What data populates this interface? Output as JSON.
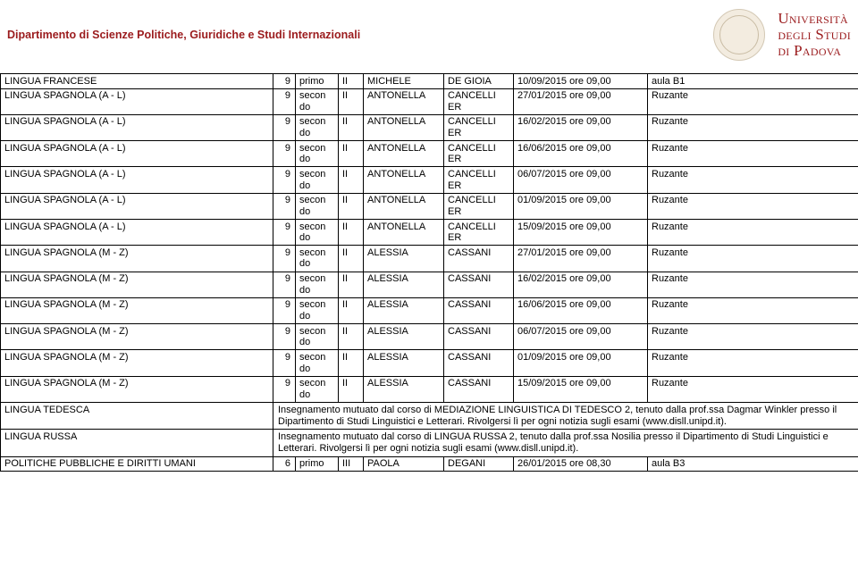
{
  "header": {
    "dept": "Dipartimento di Scienze Politiche, Giuridiche e Studi Internazionali",
    "univ_line1": "Università",
    "univ_line2": "degli Studi",
    "univ_line3": "di Padova"
  },
  "colors": {
    "brand": "#9b1b1d",
    "border": "#000000",
    "bg": "#ffffff"
  },
  "rows": [
    {
      "course": "LINGUA FRANCESE",
      "credits": "9",
      "level": "primo",
      "sem": "II",
      "first": "MICHELE",
      "last": "DE GIOIA",
      "date": "10/09/2015 ore 09,00",
      "room": "aula B1"
    },
    {
      "course": "LINGUA SPAGNOLA (A - L)",
      "credits": "9",
      "level": "secon do",
      "sem": "II",
      "first": "ANTONELLA",
      "last": "CANCELLI ER",
      "date": "27/01/2015 ore 09,00",
      "room": "Ruzante"
    },
    {
      "course": "LINGUA SPAGNOLA (A - L)",
      "credits": "9",
      "level": "secon do",
      "sem": "II",
      "first": "ANTONELLA",
      "last": "CANCELLI ER",
      "date": "16/02/2015 ore 09,00",
      "room": "Ruzante"
    },
    {
      "course": "LINGUA SPAGNOLA (A - L)",
      "credits": "9",
      "level": "secon do",
      "sem": "II",
      "first": "ANTONELLA",
      "last": "CANCELLI ER",
      "date": "16/06/2015 ore 09,00",
      "room": "Ruzante"
    },
    {
      "course": "LINGUA SPAGNOLA (A - L)",
      "credits": "9",
      "level": "secon do",
      "sem": "II",
      "first": "ANTONELLA",
      "last": "CANCELLI ER",
      "date": "06/07/2015 ore 09,00",
      "room": "Ruzante"
    },
    {
      "course": "LINGUA SPAGNOLA (A - L)",
      "credits": "9",
      "level": "secon do",
      "sem": "II",
      "first": "ANTONELLA",
      "last": "CANCELLI ER",
      "date": "01/09/2015 ore 09,00",
      "room": "Ruzante"
    },
    {
      "course": "LINGUA SPAGNOLA (A - L)",
      "credits": "9",
      "level": "secon do",
      "sem": "II",
      "first": "ANTONELLA",
      "last": "CANCELLI ER",
      "date": "15/09/2015 ore 09,00",
      "room": "Ruzante"
    },
    {
      "course": "LINGUA SPAGNOLA (M - Z)",
      "credits": "9",
      "level": "secon do",
      "sem": "II",
      "first": "ALESSIA",
      "last": "CASSANI",
      "date": "27/01/2015 ore 09,00",
      "room": "Ruzante"
    },
    {
      "course": "LINGUA SPAGNOLA (M - Z)",
      "credits": "9",
      "level": "secon do",
      "sem": "II",
      "first": "ALESSIA",
      "last": "CASSANI",
      "date": "16/02/2015 ore 09,00",
      "room": "Ruzante"
    },
    {
      "course": "LINGUA SPAGNOLA (M - Z)",
      "credits": "9",
      "level": "secon do",
      "sem": "II",
      "first": "ALESSIA",
      "last": "CASSANI",
      "date": "16/06/2015 ore 09,00",
      "room": "Ruzante"
    },
    {
      "course": "LINGUA SPAGNOLA (M - Z)",
      "credits": "9",
      "level": "secon do",
      "sem": "II",
      "first": "ALESSIA",
      "last": "CASSANI",
      "date": "06/07/2015 ore 09,00",
      "room": "Ruzante"
    },
    {
      "course": "LINGUA SPAGNOLA (M - Z)",
      "credits": "9",
      "level": "secon do",
      "sem": "II",
      "first": "ALESSIA",
      "last": "CASSANI",
      "date": "01/09/2015 ore 09,00",
      "room": "Ruzante"
    },
    {
      "course": "LINGUA SPAGNOLA (M - Z)",
      "credits": "9",
      "level": "secon do",
      "sem": "II",
      "first": "ALESSIA",
      "last": "CASSANI",
      "date": "15/09/2015 ore 09,00",
      "room": "Ruzante"
    }
  ],
  "notes": [
    {
      "course": "LINGUA TEDESCA",
      "text": "Insegnamento mutuato dal corso di MEDIAZIONE LINGUISTICA DI TEDESCO 2, tenuto dalla prof.ssa Dagmar Winkler presso il Dipartimento di Studi Linguistici e Letterari. Rivolgersi lì per ogni notizia sugli esami (www.disll.unipd.it)."
    },
    {
      "course": "LINGUA RUSSA",
      "text": "Insegnamento mutuato dal corso di LINGUA RUSSA 2, tenuto dalla prof.ssa Nosilia presso il Dipartimento di Studi Linguistici e Letterari. Rivolgersi lì per ogni notizia sugli esami (www.disll.unipd.it)."
    }
  ],
  "last_row": {
    "course": "POLITICHE PUBBLICHE E DIRITTI UMANI",
    "credits": "6",
    "level": "primo",
    "sem": "III",
    "first": "PAOLA",
    "last": "DEGANI",
    "date": "26/01/2015 ore 08,30",
    "room": "aula B3"
  }
}
